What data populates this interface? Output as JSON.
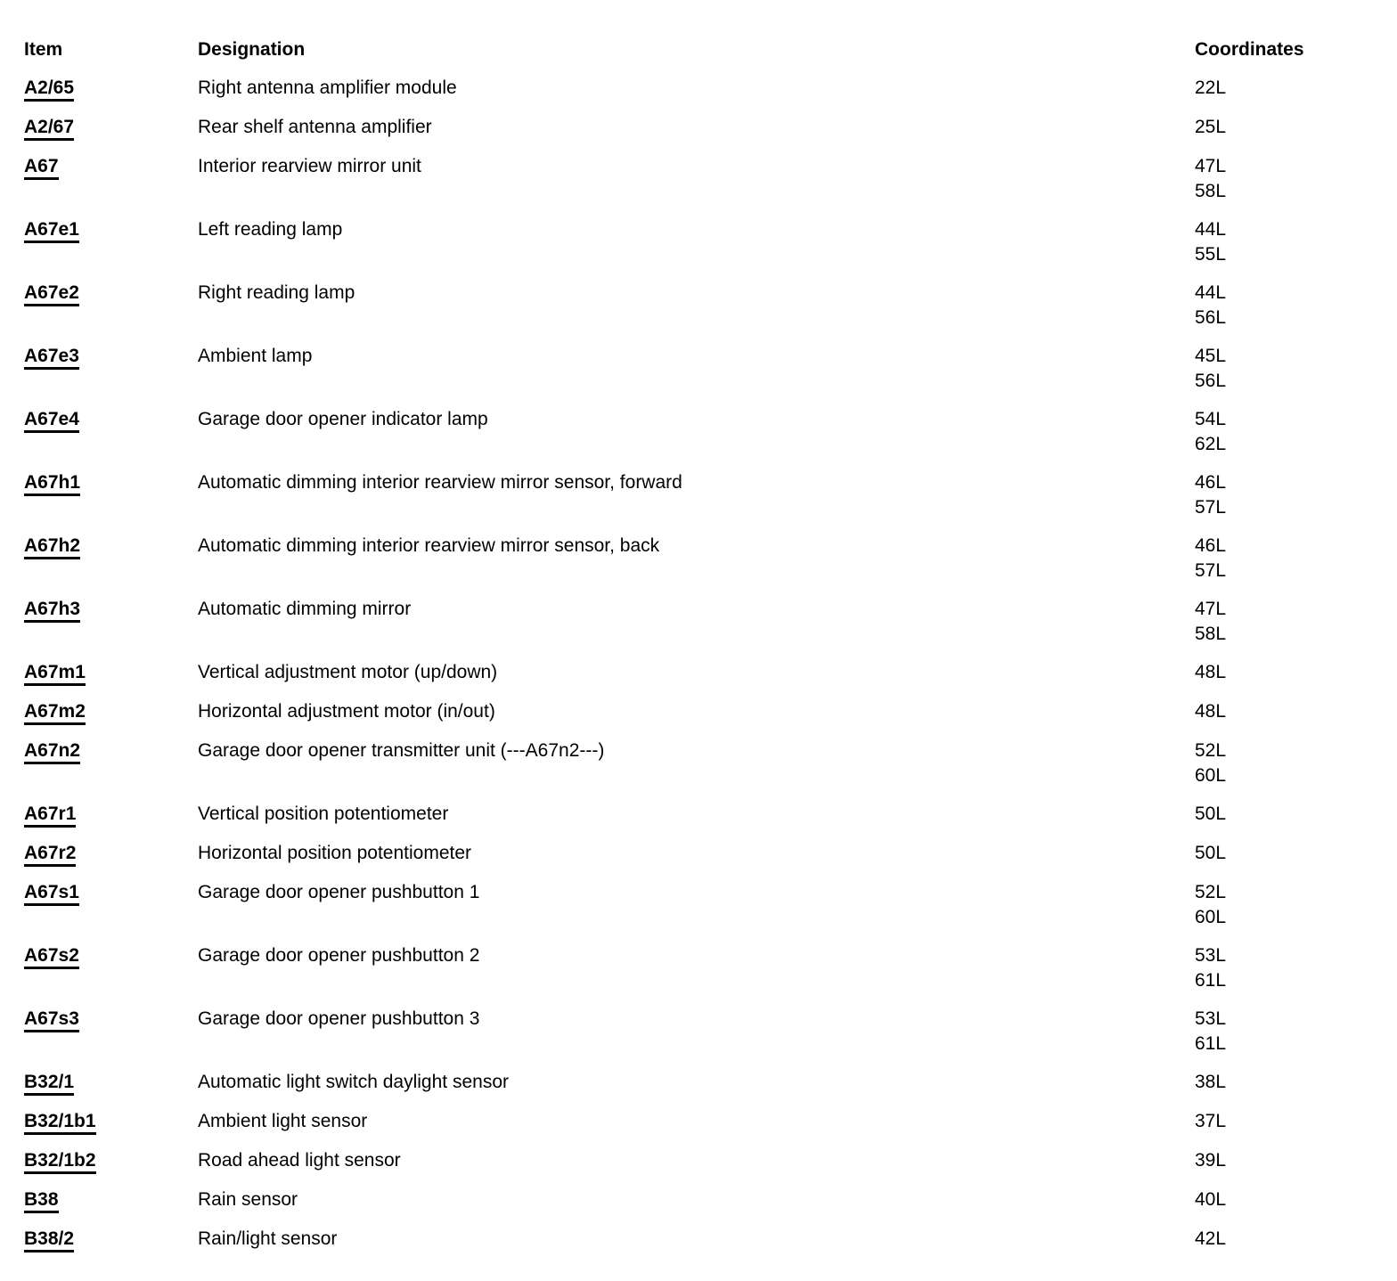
{
  "colors": {
    "text": "#000000",
    "background": "#ffffff"
  },
  "table": {
    "headers": {
      "item": "Item",
      "designation": "Designation",
      "coordinates": "Coordinates"
    },
    "rows": [
      {
        "item": "A2/65",
        "designation": "Right antenna amplifier module",
        "coordinates": [
          "22L"
        ]
      },
      {
        "item": "A2/67",
        "designation": "Rear shelf antenna amplifier",
        "coordinates": [
          "25L"
        ]
      },
      {
        "item": "A67",
        "designation": "Interior rearview mirror unit",
        "coordinates": [
          "47L",
          "58L"
        ]
      },
      {
        "item": "A67e1",
        "designation": "Left reading lamp",
        "coordinates": [
          "44L",
          "55L"
        ]
      },
      {
        "item": "A67e2",
        "designation": "Right reading lamp",
        "coordinates": [
          "44L",
          "56L"
        ]
      },
      {
        "item": "A67e3",
        "designation": "Ambient lamp",
        "coordinates": [
          "45L",
          "56L"
        ]
      },
      {
        "item": "A67e4",
        "designation": "Garage door opener indicator lamp",
        "coordinates": [
          "54L",
          "62L"
        ]
      },
      {
        "item": "A67h1",
        "designation": "Automatic dimming interior rearview mirror sensor, forward",
        "coordinates": [
          "46L",
          "57L"
        ]
      },
      {
        "item": "A67h2",
        "designation": "Automatic dimming interior rearview mirror sensor, back",
        "coordinates": [
          "46L",
          "57L"
        ]
      },
      {
        "item": "A67h3",
        "designation": "Automatic dimming mirror",
        "coordinates": [
          "47L",
          "58L"
        ]
      },
      {
        "item": "A67m1",
        "designation": "Vertical adjustment motor (up/down)",
        "coordinates": [
          "48L"
        ]
      },
      {
        "item": "A67m2",
        "designation": "Horizontal adjustment motor (in/out)",
        "coordinates": [
          "48L"
        ]
      },
      {
        "item": "A67n2",
        "designation": "Garage door opener transmitter unit (---A67n2---)",
        "coordinates": [
          "52L",
          "60L"
        ]
      },
      {
        "item": "A67r1",
        "designation": "Vertical position potentiometer",
        "coordinates": [
          "50L"
        ]
      },
      {
        "item": "A67r2",
        "designation": "Horizontal position potentiometer",
        "coordinates": [
          "50L"
        ]
      },
      {
        "item": "A67s1",
        "designation": "Garage door opener pushbutton 1",
        "coordinates": [
          "52L",
          "60L"
        ]
      },
      {
        "item": "A67s2",
        "designation": "Garage door opener pushbutton 2",
        "coordinates": [
          "53L",
          "61L"
        ]
      },
      {
        "item": "A67s3",
        "designation": "Garage door opener pushbutton 3",
        "coordinates": [
          "53L",
          "61L"
        ]
      },
      {
        "item": "B32/1",
        "designation": "Automatic light switch daylight sensor",
        "coordinates": [
          "38L"
        ]
      },
      {
        "item": "B32/1b1",
        "designation": "Ambient light sensor",
        "coordinates": [
          "37L"
        ]
      },
      {
        "item": "B32/1b2",
        "designation": "Road ahead light sensor",
        "coordinates": [
          "39L"
        ]
      },
      {
        "item": "B38",
        "designation": "Rain sensor",
        "coordinates": [
          "40L"
        ]
      },
      {
        "item": "B38/2",
        "designation": "Rain/light sensor",
        "coordinates": [
          "42L"
        ]
      }
    ]
  }
}
